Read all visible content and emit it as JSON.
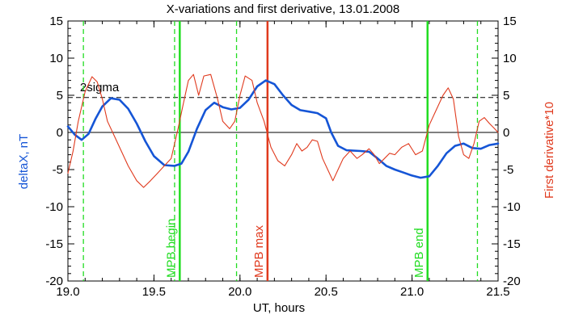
{
  "chart_data": {
    "type": "line",
    "title": "X-variations and first derivative, 13.01.2008",
    "xlabel": "UT, hours",
    "ylabel_left": "deltaX, nT",
    "ylabel_right": "First derivative*10",
    "xlim": [
      19.0,
      21.5
    ],
    "ylim": [
      -20,
      15
    ],
    "x_ticks": [
      "19.0",
      "19.5",
      "20.0",
      "20.5",
      "21.0",
      "21.5"
    ],
    "y_ticks": [
      "15",
      "10",
      "5",
      "0",
      "-5",
      "-10",
      "-15",
      "-20"
    ],
    "colors": {
      "deltaX": "#1555d6",
      "derivative": "#e03a1e",
      "mpb": "#22dd22",
      "max": "#e03a1e",
      "threshold": "#000000"
    },
    "threshold": {
      "label": "2sigma",
      "y": 4.7
    },
    "vertical_markers": [
      {
        "x": 19.65,
        "label": "MPB begin",
        "style": "solid",
        "color": "#22dd22"
      },
      {
        "x": 20.16,
        "label": "MPB max",
        "style": "solid",
        "color": "#e03a1e"
      },
      {
        "x": 21.09,
        "label": "MPB end",
        "style": "solid",
        "color": "#22dd22"
      },
      {
        "x": 19.09,
        "label": "",
        "style": "dashed",
        "color": "#22dd22"
      },
      {
        "x": 19.62,
        "label": "",
        "style": "dashed",
        "color": "#22dd22"
      },
      {
        "x": 19.98,
        "label": "",
        "style": "dashed",
        "color": "#22dd22"
      },
      {
        "x": 21.38,
        "label": "",
        "style": "dashed",
        "color": "#22dd22"
      }
    ],
    "series": [
      {
        "key": "deltaX",
        "points": [
          [
            19.0,
            0.8
          ],
          [
            19.04,
            -0.3
          ],
          [
            19.08,
            -1.0
          ],
          [
            19.12,
            -0.2
          ],
          [
            19.16,
            1.8
          ],
          [
            19.2,
            3.5
          ],
          [
            19.25,
            4.6
          ],
          [
            19.3,
            4.4
          ],
          [
            19.35,
            3.2
          ],
          [
            19.4,
            1.2
          ],
          [
            19.45,
            -1.2
          ],
          [
            19.5,
            -3.2
          ],
          [
            19.56,
            -4.4
          ],
          [
            19.62,
            -4.5
          ],
          [
            19.66,
            -4.2
          ],
          [
            19.7,
            -2.6
          ],
          [
            19.75,
            0.5
          ],
          [
            19.8,
            3.0
          ],
          [
            19.85,
            4.0
          ],
          [
            19.9,
            3.4
          ],
          [
            19.95,
            3.1
          ],
          [
            20.0,
            3.3
          ],
          [
            20.05,
            4.4
          ],
          [
            20.1,
            6.2
          ],
          [
            20.15,
            7.0
          ],
          [
            20.2,
            6.5
          ],
          [
            20.25,
            5.0
          ],
          [
            20.3,
            3.7
          ],
          [
            20.35,
            3.0
          ],
          [
            20.4,
            2.8
          ],
          [
            20.45,
            2.6
          ],
          [
            20.5,
            1.9
          ],
          [
            20.53,
            0.0
          ],
          [
            20.57,
            -1.8
          ],
          [
            20.62,
            -2.4
          ],
          [
            20.7,
            -2.5
          ],
          [
            20.75,
            -2.6
          ],
          [
            20.8,
            -3.5
          ],
          [
            20.85,
            -4.5
          ],
          [
            20.9,
            -5.0
          ],
          [
            20.95,
            -5.4
          ],
          [
            21.0,
            -5.8
          ],
          [
            21.05,
            -6.1
          ],
          [
            21.1,
            -5.9
          ],
          [
            21.15,
            -4.5
          ],
          [
            21.2,
            -2.8
          ],
          [
            21.25,
            -1.8
          ],
          [
            21.3,
            -1.5
          ],
          [
            21.35,
            -2.1
          ],
          [
            21.4,
            -2.2
          ],
          [
            21.45,
            -1.7
          ],
          [
            21.5,
            -1.5
          ]
        ]
      },
      {
        "key": "derivative",
        "points": [
          [
            19.0,
            -5.5
          ],
          [
            19.03,
            -2.5
          ],
          [
            19.06,
            1.5
          ],
          [
            19.1,
            5.5
          ],
          [
            19.14,
            7.5
          ],
          [
            19.17,
            6.8
          ],
          [
            19.2,
            4.5
          ],
          [
            19.23,
            1.5
          ],
          [
            19.27,
            -0.5
          ],
          [
            19.31,
            -2.5
          ],
          [
            19.35,
            -4.5
          ],
          [
            19.4,
            -6.5
          ],
          [
            19.44,
            -7.4
          ],
          [
            19.48,
            -6.5
          ],
          [
            19.52,
            -5.5
          ],
          [
            19.56,
            -4.5
          ],
          [
            19.6,
            -3.5
          ],
          [
            19.64,
            0.5
          ],
          [
            19.67,
            3.8
          ],
          [
            19.7,
            7.0
          ],
          [
            19.73,
            7.8
          ],
          [
            19.76,
            5.0
          ],
          [
            19.79,
            7.6
          ],
          [
            19.83,
            7.8
          ],
          [
            19.87,
            4.5
          ],
          [
            19.9,
            1.5
          ],
          [
            19.94,
            0.5
          ],
          [
            19.97,
            1.5
          ],
          [
            20.0,
            5.0
          ],
          [
            20.03,
            7.6
          ],
          [
            20.07,
            7.0
          ],
          [
            20.1,
            4.0
          ],
          [
            20.14,
            1.5
          ],
          [
            20.18,
            -2.0
          ],
          [
            20.22,
            -3.8
          ],
          [
            20.26,
            -4.5
          ],
          [
            20.3,
            -3.0
          ],
          [
            20.33,
            -1.5
          ],
          [
            20.36,
            -2.5
          ],
          [
            20.39,
            -2.0
          ],
          [
            20.42,
            -1.0
          ],
          [
            20.45,
            -1.2
          ],
          [
            20.48,
            -3.5
          ],
          [
            20.51,
            -5.0
          ],
          [
            20.54,
            -6.5
          ],
          [
            20.57,
            -5.0
          ],
          [
            20.6,
            -3.5
          ],
          [
            20.64,
            -2.5
          ],
          [
            20.68,
            -3.5
          ],
          [
            20.71,
            -3.0
          ],
          [
            20.75,
            -2.2
          ],
          [
            20.78,
            -3.0
          ],
          [
            20.81,
            -4.2
          ],
          [
            20.84,
            -3.5
          ],
          [
            20.87,
            -2.8
          ],
          [
            20.9,
            -3.0
          ],
          [
            20.94,
            -2.0
          ],
          [
            20.98,
            -1.5
          ],
          [
            21.02,
            -3.0
          ],
          [
            21.06,
            -2.5
          ],
          [
            21.1,
            1.0
          ],
          [
            21.14,
            3.0
          ],
          [
            21.18,
            5.0
          ],
          [
            21.21,
            6.0
          ],
          [
            21.24,
            4.5
          ],
          [
            21.27,
            -0.5
          ],
          [
            21.3,
            -3.0
          ],
          [
            21.33,
            -3.5
          ],
          [
            21.36,
            -1.5
          ],
          [
            21.39,
            1.5
          ],
          [
            21.42,
            2.0
          ],
          [
            21.45,
            1.2
          ],
          [
            21.48,
            0.5
          ],
          [
            21.5,
            0.0
          ]
        ]
      }
    ]
  }
}
